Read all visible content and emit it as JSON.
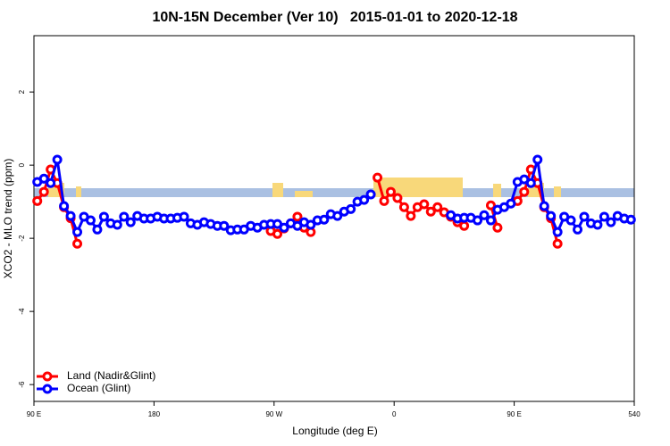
{
  "chart_data": {
    "type": "line",
    "title": "10N-15N December (Ver 10)   2015-01-01 to 2020-12-18",
    "xlabel": "Longitude (deg E)",
    "ylabel": "XCO2 - MLO trend (ppm)",
    "x": [
      92.5,
      97.5,
      102.5,
      107.5,
      112.5,
      117.5,
      122.5,
      127.5,
      132.5,
      137.5,
      142.5,
      147.5,
      152.5,
      157.5,
      162.5,
      167.5,
      172.5,
      177.5,
      182.5,
      187.5,
      192.5,
      197.5,
      202.5,
      207.5,
      212.5,
      217.5,
      222.5,
      227.5,
      232.5,
      237.5,
      242.5,
      247.5,
      252.5,
      257.5,
      262.5,
      267.5,
      272.5,
      277.5,
      282.5,
      287.5,
      292.5,
      297.5,
      302.5,
      307.5,
      312.5,
      317.5,
      322.5,
      327.5,
      332.5,
      337.5,
      342.5,
      347.5,
      352.5,
      357.5,
      362.5,
      367.5,
      372.5,
      377.5,
      382.5,
      387.5,
      392.5,
      397.5,
      402.5,
      407.5,
      412.5,
      417.5,
      422.5,
      427.5,
      432.5,
      437.5,
      442.5,
      447.5,
      452.5,
      457.5,
      462.5,
      467.5,
      472.5,
      477.5,
      482.5,
      487.5,
      492.5,
      497.5,
      502.5,
      507.5,
      512.5,
      517.5,
      522.5,
      527.5,
      532.5,
      537.5
    ],
    "series": [
      {
        "name": "Land (Nadir&Glint)",
        "color": "#ff0000",
        "values": [
          -0.98,
          -0.73,
          -0.12,
          -0.49,
          -1.15,
          -1.45,
          -2.15,
          null,
          null,
          null,
          null,
          null,
          null,
          null,
          null,
          null,
          null,
          null,
          null,
          null,
          null,
          null,
          null,
          null,
          null,
          null,
          null,
          null,
          null,
          null,
          null,
          null,
          null,
          null,
          null,
          -1.8,
          -1.88,
          -1.73,
          -1.59,
          -1.41,
          -1.71,
          -1.83,
          null,
          null,
          null,
          null,
          null,
          null,
          null,
          null,
          null,
          -0.34,
          -0.98,
          -0.73,
          -0.9,
          -1.15,
          -1.39,
          -1.15,
          -1.07,
          -1.27,
          -1.15,
          -1.29,
          -1.41,
          -1.56,
          -1.66,
          null,
          null,
          null,
          -1.1,
          -1.71,
          null,
          null,
          -0.98,
          -0.73,
          -0.12,
          -0.49,
          -1.15,
          -1.45,
          -2.15,
          null,
          null,
          null,
          null,
          null,
          null,
          null,
          null,
          null,
          null,
          null
        ]
      },
      {
        "name": "Ocean (Glint)",
        "color": "#0000ff",
        "values": [
          -0.46,
          -0.37,
          -0.49,
          0.15,
          -1.12,
          -1.39,
          -1.83,
          -1.41,
          -1.51,
          -1.76,
          -1.41,
          -1.59,
          -1.63,
          -1.41,
          -1.56,
          -1.39,
          -1.46,
          -1.46,
          -1.41,
          -1.46,
          -1.46,
          -1.44,
          -1.41,
          -1.59,
          -1.63,
          -1.56,
          -1.61,
          -1.66,
          -1.66,
          -1.78,
          -1.76,
          -1.76,
          -1.66,
          -1.71,
          -1.63,
          -1.61,
          -1.61,
          -1.71,
          -1.59,
          -1.66,
          -1.56,
          -1.63,
          -1.51,
          -1.49,
          -1.34,
          -1.39,
          -1.27,
          -1.2,
          -1.0,
          -0.95,
          -0.8,
          null,
          null,
          null,
          null,
          null,
          null,
          null,
          null,
          null,
          null,
          null,
          -1.37,
          -1.46,
          -1.44,
          -1.44,
          -1.51,
          -1.37,
          -1.51,
          -1.22,
          -1.15,
          -1.05,
          -0.46,
          -0.39,
          -0.49,
          0.15,
          -1.12,
          -1.39,
          -1.83,
          -1.41,
          -1.51,
          -1.76,
          -1.41,
          -1.59,
          -1.63,
          -1.41,
          -1.56,
          -1.39,
          -1.46,
          -1.49
        ]
      }
    ],
    "xlim": [
      90,
      540
    ],
    "xticks": [
      {
        "value": 90,
        "label": "90 E"
      },
      180,
      {
        "value": 270,
        "label": "90 W"
      },
      {
        "value": 360,
        "label": "0"
      },
      {
        "value": 450,
        "label": "90 E"
      },
      540
    ],
    "ylim": [
      -6.46,
      3.54
    ],
    "yticks": [
      -6,
      -4,
      -2,
      0,
      2
    ],
    "legend": "bottom-left"
  }
}
